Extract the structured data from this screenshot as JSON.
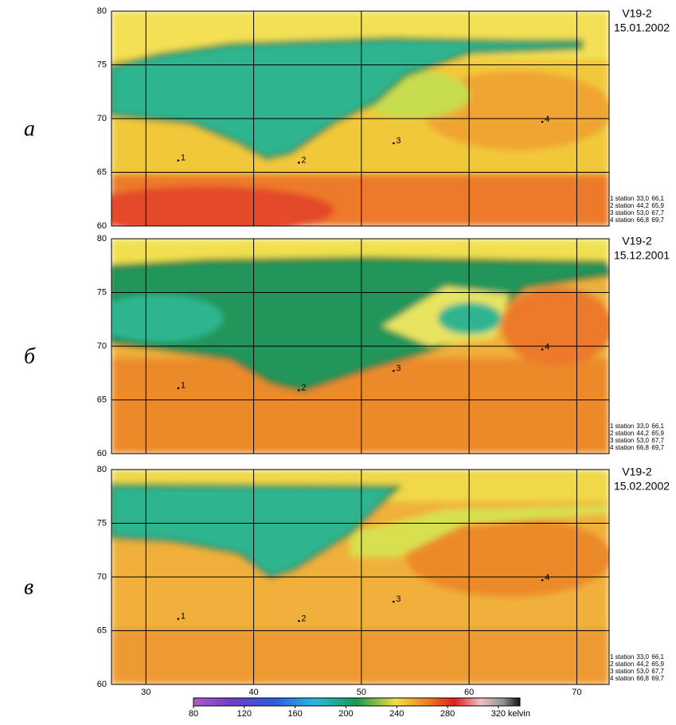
{
  "chart_data": [
    {
      "type": "heatmap",
      "panel_label": "а",
      "title": "V19-2",
      "date": "15.01.2002",
      "xlim": [
        26.8,
        73.0
      ],
      "ylim": [
        60,
        80
      ],
      "xticks": [
        30,
        40,
        50,
        60,
        70
      ],
      "yticks": [
        60,
        65,
        70,
        75,
        80
      ],
      "show_xtick_labels": false,
      "grid": true,
      "stations": {
        "labels": [
          "1",
          "2",
          "3",
          "4"
        ],
        "names": [
          "1 station",
          "2 station",
          "3 station",
          "4 station"
        ],
        "x": [
          {
            "value": 33.0,
            "label": "33,0"
          },
          {
            "value": 44.2,
            "label": "44,2"
          },
          {
            "value": 53.0,
            "label": "53,0"
          },
          {
            "value": 66.8,
            "label": "66,8"
          }
        ],
        "y": [
          {
            "value": 66.1,
            "label": "66,1"
          },
          {
            "value": 65.9,
            "label": "65,9"
          },
          {
            "value": 67.7,
            "label": "67,7"
          },
          {
            "value": 69.7,
            "label": "69,7"
          }
        ]
      }
    },
    {
      "type": "heatmap",
      "panel_label": "б",
      "title": "V19-2",
      "date": "15.12.2001",
      "xlim": [
        26.8,
        73.0
      ],
      "ylim": [
        60,
        80
      ],
      "xticks": [
        30,
        40,
        50,
        60,
        70
      ],
      "yticks": [
        60,
        65,
        70,
        75,
        80
      ],
      "show_xtick_labels": false,
      "grid": true,
      "stations": {
        "labels": [
          "1",
          "2",
          "3",
          "4"
        ],
        "names": [
          "1 station",
          "2 station",
          "3 station",
          "4 station"
        ],
        "x": [
          {
            "value": 33.0,
            "label": "33,0"
          },
          {
            "value": 44.2,
            "label": "44,2"
          },
          {
            "value": 53.0,
            "label": "53,0"
          },
          {
            "value": 66.8,
            "label": "66,8"
          }
        ],
        "y": [
          {
            "value": 66.1,
            "label": "66,1"
          },
          {
            "value": 65.9,
            "label": "65,9"
          },
          {
            "value": 67.7,
            "label": "67,7"
          },
          {
            "value": 69.7,
            "label": "69,7"
          }
        ]
      }
    },
    {
      "type": "heatmap",
      "panel_label": "в",
      "title": "V19-2",
      "date": "15.02.2002",
      "xlim": [
        26.8,
        73.0
      ],
      "ylim": [
        60,
        80
      ],
      "xticks": [
        30,
        40,
        50,
        60,
        70
      ],
      "yticks": [
        60,
        65,
        70,
        75,
        80
      ],
      "show_xtick_labels": true,
      "grid": true,
      "stations": {
        "labels": [
          "1",
          "2",
          "3",
          "4"
        ],
        "names": [
          "1 station",
          "2 station",
          "3 station",
          "4 station"
        ],
        "x": [
          {
            "value": 33.0,
            "label": "33,0"
          },
          {
            "value": 44.2,
            "label": "44,2"
          },
          {
            "value": 53.0,
            "label": "53,0"
          },
          {
            "value": 66.8,
            "label": "66,8"
          }
        ],
        "y": [
          {
            "value": 66.1,
            "label": "66,1"
          },
          {
            "value": 65.9,
            "label": "65,9"
          },
          {
            "value": 67.7,
            "label": "67,7"
          },
          {
            "value": 69.7,
            "label": "69,7"
          }
        ]
      }
    }
  ],
  "colorbar": {
    "lim": [
      80,
      337
    ],
    "ticks": [
      80,
      120,
      160,
      200,
      240,
      280,
      320
    ],
    "unit": "kelvin"
  }
}
